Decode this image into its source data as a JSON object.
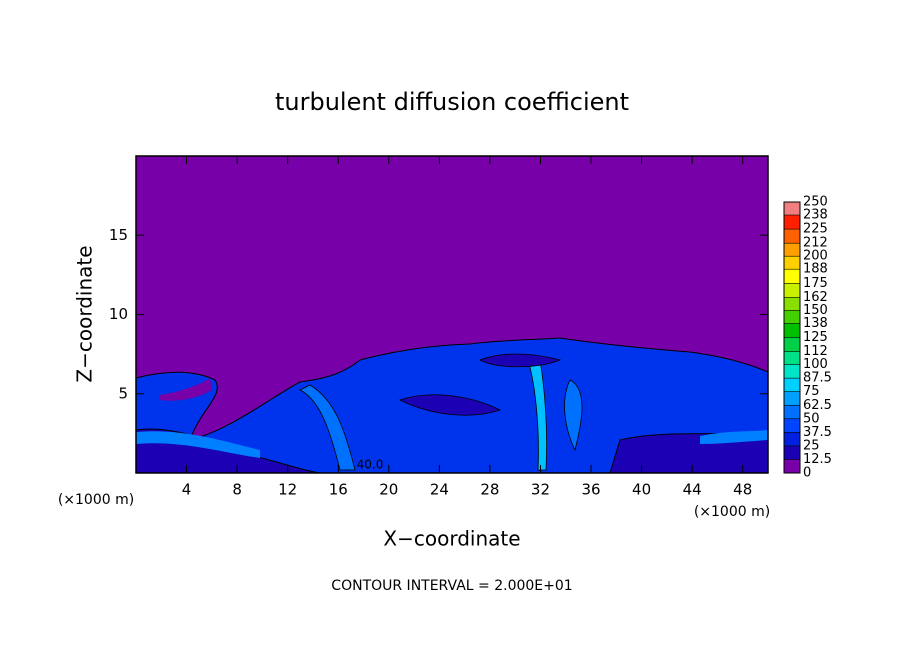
{
  "chart_data": {
    "type": "contour",
    "title": "turbulent diffusion coefficient",
    "xlabel": "X−coordinate",
    "ylabel": "Z−coordinate",
    "x_unit": "(×1000 m)",
    "y_unit": "(×1000 m)",
    "footer": "CONTOUR INTERVAL = 2.000E+01",
    "contour_label": "40.0",
    "xlim": [
      0,
      50
    ],
    "xticks": [
      4,
      8,
      12,
      16,
      20,
      24,
      28,
      32,
      36,
      40,
      44,
      48
    ],
    "ylim": [
      0,
      20
    ],
    "yticks": [
      5,
      10,
      15
    ],
    "colorbar": {
      "ticks": [
        0,
        12.5,
        25,
        37.5,
        50,
        62.5,
        75,
        87.5,
        100,
        112,
        125,
        138,
        150,
        162,
        175,
        188,
        200,
        212,
        225,
        238,
        250
      ],
      "colors": [
        "#7800a8",
        "#1c00b4",
        "#0022e0",
        "#0044ff",
        "#0070ff",
        "#00a0ff",
        "#00d0ff",
        "#00e4c8",
        "#00e088",
        "#00d048",
        "#00c000",
        "#44d000",
        "#88e000",
        "#c8f000",
        "#ffff00",
        "#ffd000",
        "#ffa000",
        "#ff6000",
        "#ff2000",
        "#f08080"
      ]
    }
  }
}
